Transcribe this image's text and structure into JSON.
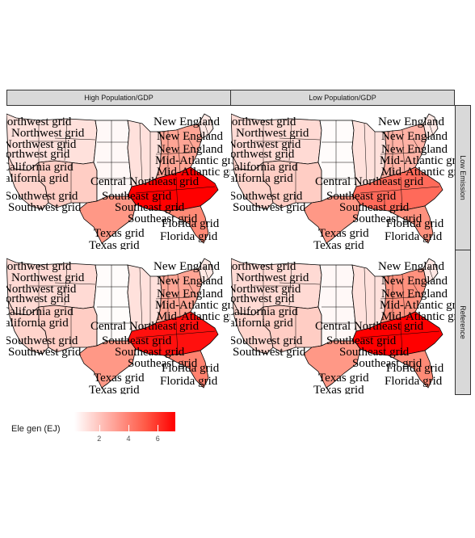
{
  "facets": {
    "columns": [
      "High Population/GDP",
      "Low Population/GDP"
    ],
    "rows": [
      "Low Emission",
      "Reference"
    ]
  },
  "legend": {
    "title": "Ele gen (EJ)",
    "ticks": [
      "2",
      "4",
      "6"
    ],
    "tick_values": [
      2,
      4,
      6
    ],
    "range": [
      0.3,
      7.2
    ],
    "low_color": "#ffffff",
    "high_color": "#ff0000"
  },
  "grid_labels": [
    "Northwest grid",
    "Northwest grid",
    "Northwest grid",
    "Northwest grid",
    "California grid",
    "California grid",
    "Southwest grid",
    "Southwest grid",
    "Texas grid",
    "Texas grid",
    "Central Northeast grid",
    "Southeast grid",
    "Southeast grid",
    "Southeast grid",
    "Florida grid",
    "Florida grid",
    "New England",
    "New England",
    "New England",
    "Mid-Atlantic grid",
    "Mid-Atlantic grid"
  ],
  "region_values": {
    "High Population/GDP|Low Emission": {
      "northwest": 1.2,
      "california": 1.6,
      "southwest": 1.8,
      "texas": 3.4,
      "central": 0.5,
      "midwest": 1.2,
      "southeast": 7.2,
      "mid_atlantic": 3.0,
      "new_england": 1.0,
      "florida": 3.8
    },
    "Low Population/GDP|Low Emission": {
      "northwest": 1.4,
      "california": 1.6,
      "southwest": 1.8,
      "texas": 3.4,
      "central": 0.4,
      "midwest": 1.2,
      "southeast": 4.6,
      "mid_atlantic": 2.6,
      "new_england": 1.0,
      "florida": 3.6
    },
    "High Population/GDP|Reference": {
      "northwest": 1.4,
      "california": 1.6,
      "southwest": 1.8,
      "texas": 3.4,
      "central": 0.4,
      "midwest": 1.2,
      "southeast": 6.8,
      "mid_atlantic": 3.0,
      "new_england": 1.0,
      "florida": 4.0
    },
    "Low Population/GDP|Reference": {
      "northwest": 1.4,
      "california": 1.6,
      "southwest": 1.8,
      "texas": 3.4,
      "central": 0.5,
      "midwest": 1.2,
      "southeast": 7.2,
      "mid_atlantic": 3.6,
      "new_england": 1.0,
      "florida": 3.8
    }
  }
}
